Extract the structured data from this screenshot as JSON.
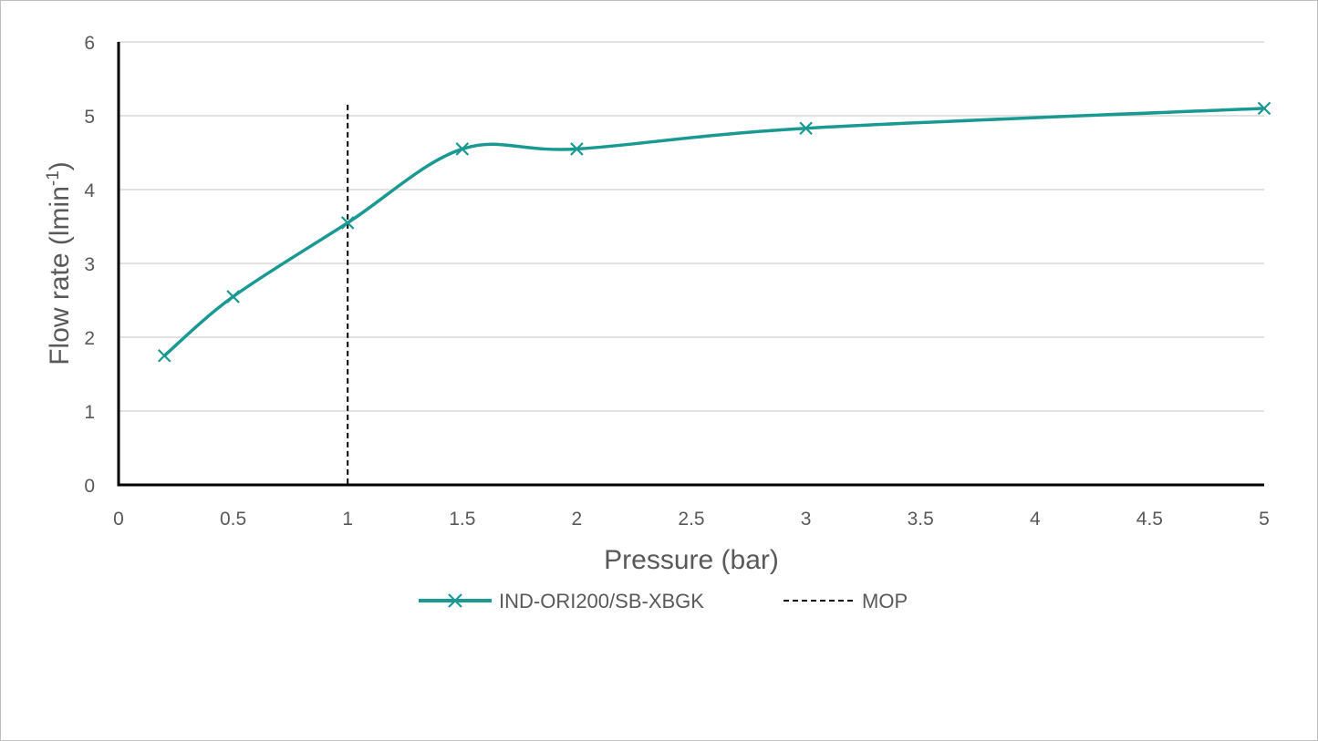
{
  "chart_data": {
    "type": "line",
    "title": "",
    "xlabel": "Pressure (bar)",
    "ylabel": {
      "prefix": "Flow rate (lmin",
      "sup": "-1",
      "suffix": ")"
    },
    "xlim": [
      0,
      5
    ],
    "ylim": [
      0,
      6
    ],
    "xticks": [
      "0",
      "0.5",
      "1",
      "1.5",
      "2",
      "2.5",
      "3",
      "3.5",
      "4",
      "4.5",
      "5"
    ],
    "yticks": [
      "0",
      "1",
      "2",
      "3",
      "4",
      "5",
      "6"
    ],
    "grid": "horizontal",
    "legend_position": "bottom",
    "series": [
      {
        "name": "IND-ORI200/SB-XBGK",
        "color": "#1a9993",
        "marker": "x",
        "line": "smooth",
        "x": [
          0.2,
          0.5,
          1,
          1.5,
          2,
          3,
          5
        ],
        "y": [
          1.75,
          2.55,
          3.55,
          4.55,
          4.55,
          4.83,
          5.1
        ]
      },
      {
        "name": "MOP",
        "color": "#000000",
        "style": "dashed",
        "type": "vertical-line",
        "x": 1,
        "y_range": [
          0,
          5.15
        ]
      }
    ]
  }
}
